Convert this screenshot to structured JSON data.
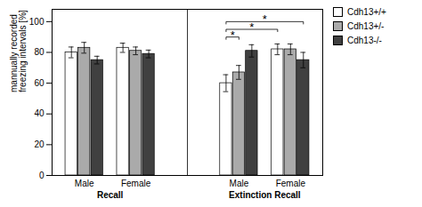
{
  "chart_data": {
    "type": "bar",
    "y_label": "mannually recorded\nfreezing intervals [%]",
    "categories": [
      "Male",
      "Female",
      "Male",
      "Female"
    ],
    "phases": [
      "Recall",
      "Recall",
      "Extinction Recall",
      "Extinction Recall"
    ],
    "series": [
      {
        "name": "Cdh13+/+",
        "color": "#ffffff",
        "values": [
          80,
          83,
          60,
          82
        ],
        "errors": [
          3.5,
          3.0,
          5.5,
          3.5
        ]
      },
      {
        "name": "Cdh13+/-",
        "color": "#aaaaaa",
        "values": [
          83,
          81,
          67,
          82
        ],
        "errors": [
          3.5,
          2.5,
          4.5,
          3.5
        ]
      },
      {
        "name": "Cdh13-/-",
        "color": "#404040",
        "values": [
          75,
          79,
          81,
          75
        ],
        "errors": [
          2.5,
          2.5,
          4.0,
          5.0
        ]
      }
    ],
    "ylim": [
      0,
      108
    ],
    "yticks": [
      0,
      20,
      40,
      60,
      80,
      100
    ],
    "grid": false,
    "legend": "right",
    "annotations": [
      {
        "text": "*",
        "y": 90,
        "from": {
          "category": 2,
          "series": "Cdh13+/+"
        },
        "to": {
          "category": 2,
          "series": "Cdh13+/-"
        }
      },
      {
        "text": "*",
        "y": 95,
        "from": {
          "category": 2,
          "series": "Cdh13+/+"
        },
        "to": {
          "category": 3,
          "series": "Cdh13+/+"
        }
      },
      {
        "text": "*",
        "y": 100,
        "from": {
          "category": 2,
          "series": "Cdh13+/+"
        },
        "to": {
          "category": 3,
          "series": "Cdh13-/-"
        }
      }
    ]
  }
}
